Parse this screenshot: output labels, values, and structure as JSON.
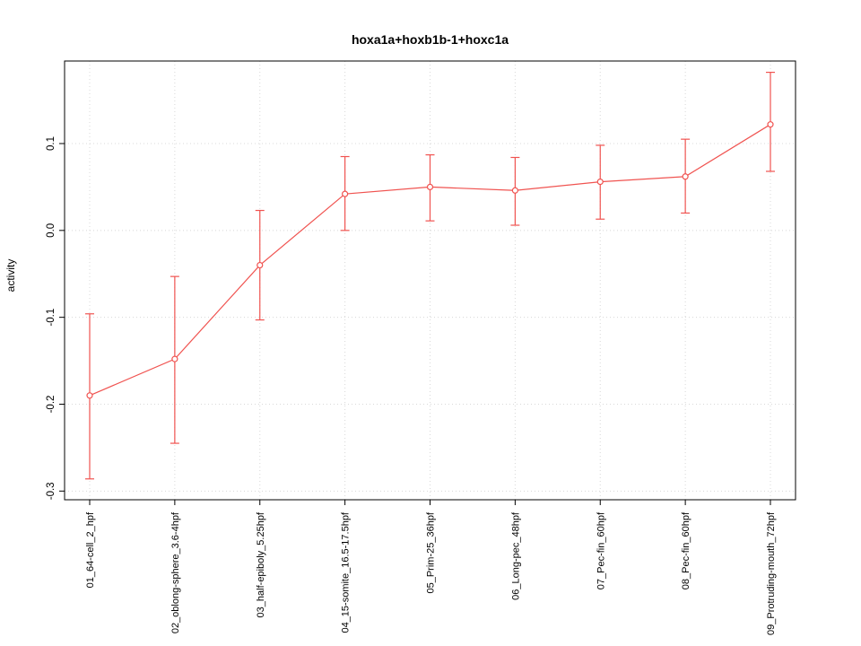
{
  "chart_data": {
    "type": "line",
    "title": "hoxa1a+hoxb1b-1+hoxc1a",
    "xlabel": "",
    "ylabel": "activity",
    "categories": [
      "01_64-cell_2_hpf",
      "02_oblong-sphere_3.6-4hpf",
      "03_half-epiboly_5.25hpf",
      "04_15-somite_16.5-17.5hpf",
      "05_Prim-25_36hpf",
      "06_Long-pec_48hpf",
      "07_Pec-fin_60hpf",
      "08_Pec-fin_60hpf",
      "09_Protruding-mouth_72hpf"
    ],
    "series": [
      {
        "name": "activity",
        "values": [
          -0.19,
          -0.148,
          -0.04,
          0.042,
          0.05,
          0.046,
          0.056,
          0.062,
          0.122
        ],
        "err_low": [
          -0.286,
          -0.245,
          -0.103,
          0.0,
          0.011,
          0.006,
          0.013,
          0.02,
          0.068
        ],
        "err_high": [
          -0.096,
          -0.053,
          0.023,
          0.085,
          0.087,
          0.084,
          0.098,
          0.105,
          0.182
        ]
      }
    ],
    "yticks": [
      -0.3,
      -0.2,
      -0.1,
      0.0,
      0.1
    ],
    "ytick_labels": [
      "-0.3",
      "-0.2",
      "-0.1",
      "0.0",
      "0.1"
    ],
    "ylim": [
      -0.31,
      0.195
    ],
    "grid": "dotted",
    "legend": "none",
    "colors": {
      "series": "#f05350",
      "grid": "#d8d8d8",
      "axis": "#000000",
      "text": "#000000"
    }
  }
}
